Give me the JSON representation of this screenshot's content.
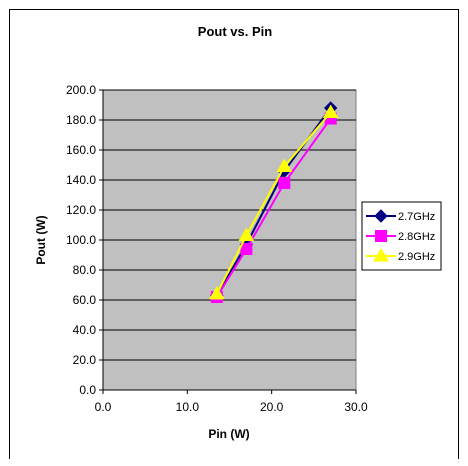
{
  "chart_data": {
    "type": "line",
    "title": "Pout vs. Pin",
    "xlabel": "Pin (W)",
    "ylabel": "Pout (W)",
    "xlim": [
      0,
      30
    ],
    "ylim": [
      0,
      200
    ],
    "x_ticks": [
      "0.0",
      "10.0",
      "20.0",
      "30.0"
    ],
    "y_ticks": [
      "0.0",
      "20.0",
      "40.0",
      "60.0",
      "80.0",
      "100.0",
      "120.0",
      "140.0",
      "160.0",
      "180.0",
      "200.0"
    ],
    "grid": "horizontal",
    "legend_position": "right",
    "plot_background": "#c0c0c0",
    "series": [
      {
        "name": "2.7GHz",
        "color": "#000080",
        "marker": "diamond",
        "x": [
          13.5,
          17.0,
          21.5,
          27.0
        ],
        "y": [
          63.0,
          97.0,
          146.0,
          188.0
        ]
      },
      {
        "name": "2.8GHz",
        "color": "#ff00ff",
        "marker": "square",
        "x": [
          13.5,
          17.0,
          21.5,
          27.0
        ],
        "y": [
          62.0,
          94.0,
          138.0,
          181.0
        ]
      },
      {
        "name": "2.9GHz",
        "color": "#ffff00",
        "marker": "triangle",
        "x": [
          13.5,
          17.0,
          21.5,
          27.0
        ],
        "y": [
          64.0,
          103.0,
          149.0,
          185.0
        ]
      }
    ]
  }
}
